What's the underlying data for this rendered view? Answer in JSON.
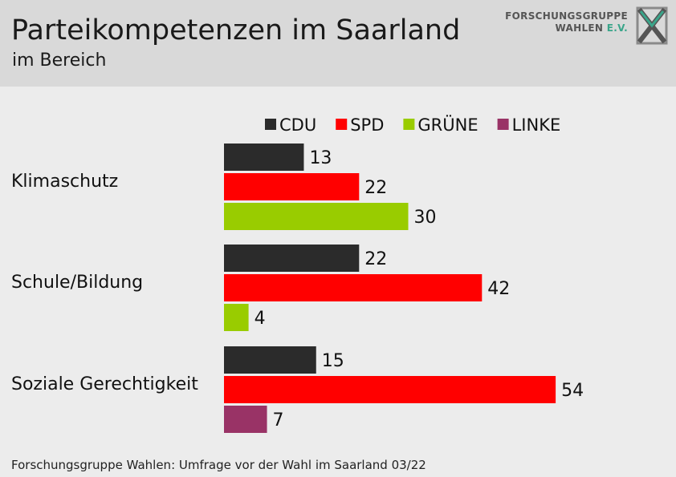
{
  "header": {
    "title": "Parteikompetenzen im Saarland",
    "subtitle": "im Bereich",
    "logo_line1": "FORSCHUNGSGRUPPE",
    "logo_line2": "WAHLEN",
    "logo_ev": "E.V."
  },
  "source": "Forschungsgruppe Wahlen: Umfrage vor der Wahl im Saarland 03/22",
  "chart_data": {
    "type": "bar",
    "orientation": "horizontal",
    "legend_position": "top",
    "legend": [
      {
        "name": "CDU",
        "color": "#2b2b2b"
      },
      {
        "name": "SPD",
        "color": "#ff0000"
      },
      {
        "name": "GRÜNE",
        "color": "#99cc00"
      },
      {
        "name": "LINKE",
        "color": "#993366"
      }
    ],
    "groups": [
      {
        "category": "Klimaschutz",
        "bars": [
          {
            "party": "CDU",
            "value": 13,
            "color": "#2b2b2b"
          },
          {
            "party": "SPD",
            "value": 22,
            "color": "#ff0000"
          },
          {
            "party": "GRÜNE",
            "value": 30,
            "color": "#99cc00"
          }
        ]
      },
      {
        "category": "Schule/Bildung",
        "bars": [
          {
            "party": "CDU",
            "value": 22,
            "color": "#2b2b2b"
          },
          {
            "party": "SPD",
            "value": 42,
            "color": "#ff0000"
          },
          {
            "party": "GRÜNE",
            "value": 4,
            "color": "#99cc00"
          }
        ]
      },
      {
        "category": "Soziale Gerechtigkeit",
        "bars": [
          {
            "party": "CDU",
            "value": 15,
            "color": "#2b2b2b"
          },
          {
            "party": "SPD",
            "value": 54,
            "color": "#ff0000"
          },
          {
            "party": "LINKE",
            "value": 7,
            "color": "#993366"
          }
        ]
      }
    ],
    "xlim": [
      0,
      60
    ],
    "grid": false
  }
}
